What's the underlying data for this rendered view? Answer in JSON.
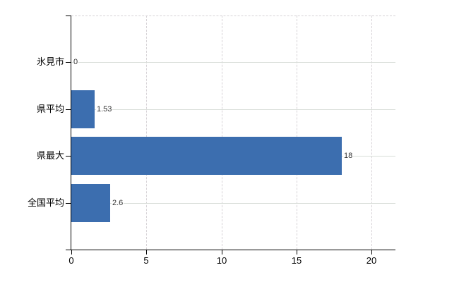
{
  "chart_data": {
    "type": "bar",
    "orientation": "horizontal",
    "title": "",
    "xlabel": "",
    "ylabel": "",
    "categories": [
      "氷見市",
      "県平均",
      "県最大",
      "全国平均"
    ],
    "values": [
      0,
      1.53,
      18,
      2.6
    ],
    "value_labels": [
      "0",
      "1.53",
      "18",
      "2.6"
    ],
    "x_ticks": [
      0,
      5,
      10,
      15,
      20
    ],
    "x_tick_labels": [
      "0",
      "5",
      "10",
      "15",
      "20"
    ],
    "xlim": [
      0,
      21.6
    ],
    "grid": true,
    "legend": false,
    "gridline_style": {
      "horizontal": "solid",
      "vertical": "dashed",
      "top_border": "dashed"
    },
    "colors": {
      "bar": "#3c6eaf",
      "grid_horizontal": "#d9ded9",
      "grid_vertical": "#d6d2d6",
      "axis": "#000000",
      "category_label": "#000000",
      "value_label": "#333333",
      "tick_label": "#000000",
      "background": "#ffffff"
    }
  }
}
